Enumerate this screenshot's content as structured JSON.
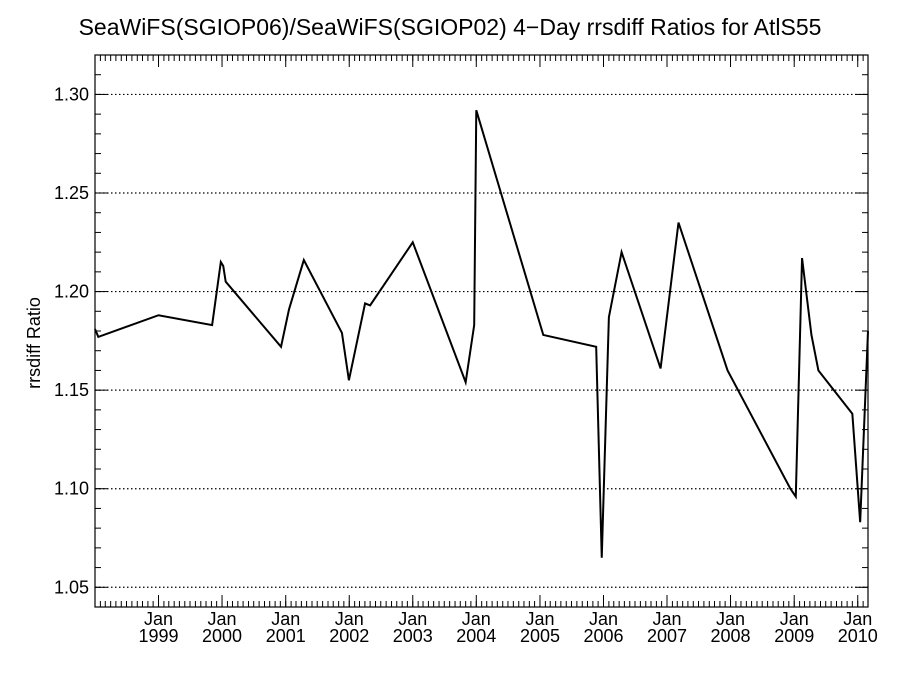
{
  "chart_data": {
    "type": "line",
    "title": "SeaWiFS(SGIOP06)/SeaWiFS(SGIOP02) 4−Day rrsdiff Ratios for AtlS55",
    "xlabel": "",
    "ylabel": "rrsdiff Ratio",
    "ylim": [
      1.04,
      1.32
    ],
    "xlim": [
      "1998-01-01",
      "2010-03-01"
    ],
    "grid": "horizontal dotted",
    "y_ticks": [
      {
        "value": 1.05,
        "label": "1.05"
      },
      {
        "value": 1.1,
        "label": "1.10"
      },
      {
        "value": 1.15,
        "label": "1.15"
      },
      {
        "value": 1.2,
        "label": "1.20"
      },
      {
        "value": 1.25,
        "label": "1.25"
      },
      {
        "value": 1.3,
        "label": "1.30"
      }
    ],
    "x_ticks": [
      {
        "date": "1999-01-01",
        "month": "Jan",
        "year": "1999"
      },
      {
        "date": "2000-01-01",
        "month": "Jan",
        "year": "2000"
      },
      {
        "date": "2001-01-01",
        "month": "Jan",
        "year": "2001"
      },
      {
        "date": "2002-01-01",
        "month": "Jan",
        "year": "2002"
      },
      {
        "date": "2003-01-01",
        "month": "Jan",
        "year": "2003"
      },
      {
        "date": "2004-01-01",
        "month": "Jan",
        "year": "2004"
      },
      {
        "date": "2005-01-01",
        "month": "Jan",
        "year": "2005"
      },
      {
        "date": "2006-01-01",
        "month": "Jan",
        "year": "2006"
      },
      {
        "date": "2007-01-01",
        "month": "Jan",
        "year": "2007"
      },
      {
        "date": "2008-01-01",
        "month": "Jan",
        "year": "2008"
      },
      {
        "date": "2009-01-01",
        "month": "Jan",
        "year": "2009"
      },
      {
        "date": "2010-01-01",
        "month": "Jan",
        "year": "2010"
      }
    ],
    "series": [
      {
        "color": "#000000",
        "points": [
          {
            "x": "1998-01-01",
            "y": 1.181
          },
          {
            "x": "1998-01-20",
            "y": 1.177
          },
          {
            "x": "1999-01-01",
            "y": 1.188
          },
          {
            "x": "1999-11-05",
            "y": 1.183
          },
          {
            "x": "1999-12-25",
            "y": 1.215
          },
          {
            "x": "2000-01-08",
            "y": 1.213
          },
          {
            "x": "2000-01-22",
            "y": 1.205
          },
          {
            "x": "2000-12-05",
            "y": 1.172
          },
          {
            "x": "2001-01-20",
            "y": 1.191
          },
          {
            "x": "2001-04-15",
            "y": 1.216
          },
          {
            "x": "2001-11-20",
            "y": 1.179
          },
          {
            "x": "2001-12-30",
            "y": 1.155
          },
          {
            "x": "2002-04-02",
            "y": 1.194
          },
          {
            "x": "2002-05-01",
            "y": 1.193
          },
          {
            "x": "2003-01-01",
            "y": 1.225
          },
          {
            "x": "2003-11-01",
            "y": 1.154
          },
          {
            "x": "2003-12-20",
            "y": 1.183
          },
          {
            "x": "2004-01-01",
            "y": 1.292
          },
          {
            "x": "2005-01-20",
            "y": 1.178
          },
          {
            "x": "2005-11-20",
            "y": 1.172
          },
          {
            "x": "2005-12-22",
            "y": 1.065
          },
          {
            "x": "2006-02-01",
            "y": 1.187
          },
          {
            "x": "2006-04-15",
            "y": 1.22
          },
          {
            "x": "2006-11-25",
            "y": 1.161
          },
          {
            "x": "2007-03-08",
            "y": 1.235
          },
          {
            "x": "2007-12-15",
            "y": 1.16
          },
          {
            "x": "2008-12-10",
            "y": 1.1
          },
          {
            "x": "2009-01-10",
            "y": 1.096
          },
          {
            "x": "2009-02-15",
            "y": 1.217
          },
          {
            "x": "2009-04-10",
            "y": 1.178
          },
          {
            "x": "2009-05-20",
            "y": 1.16
          },
          {
            "x": "2009-12-01",
            "y": 1.138
          },
          {
            "x": "2010-01-15",
            "y": 1.083
          },
          {
            "x": "2010-03-01",
            "y": 1.18
          }
        ]
      }
    ]
  }
}
